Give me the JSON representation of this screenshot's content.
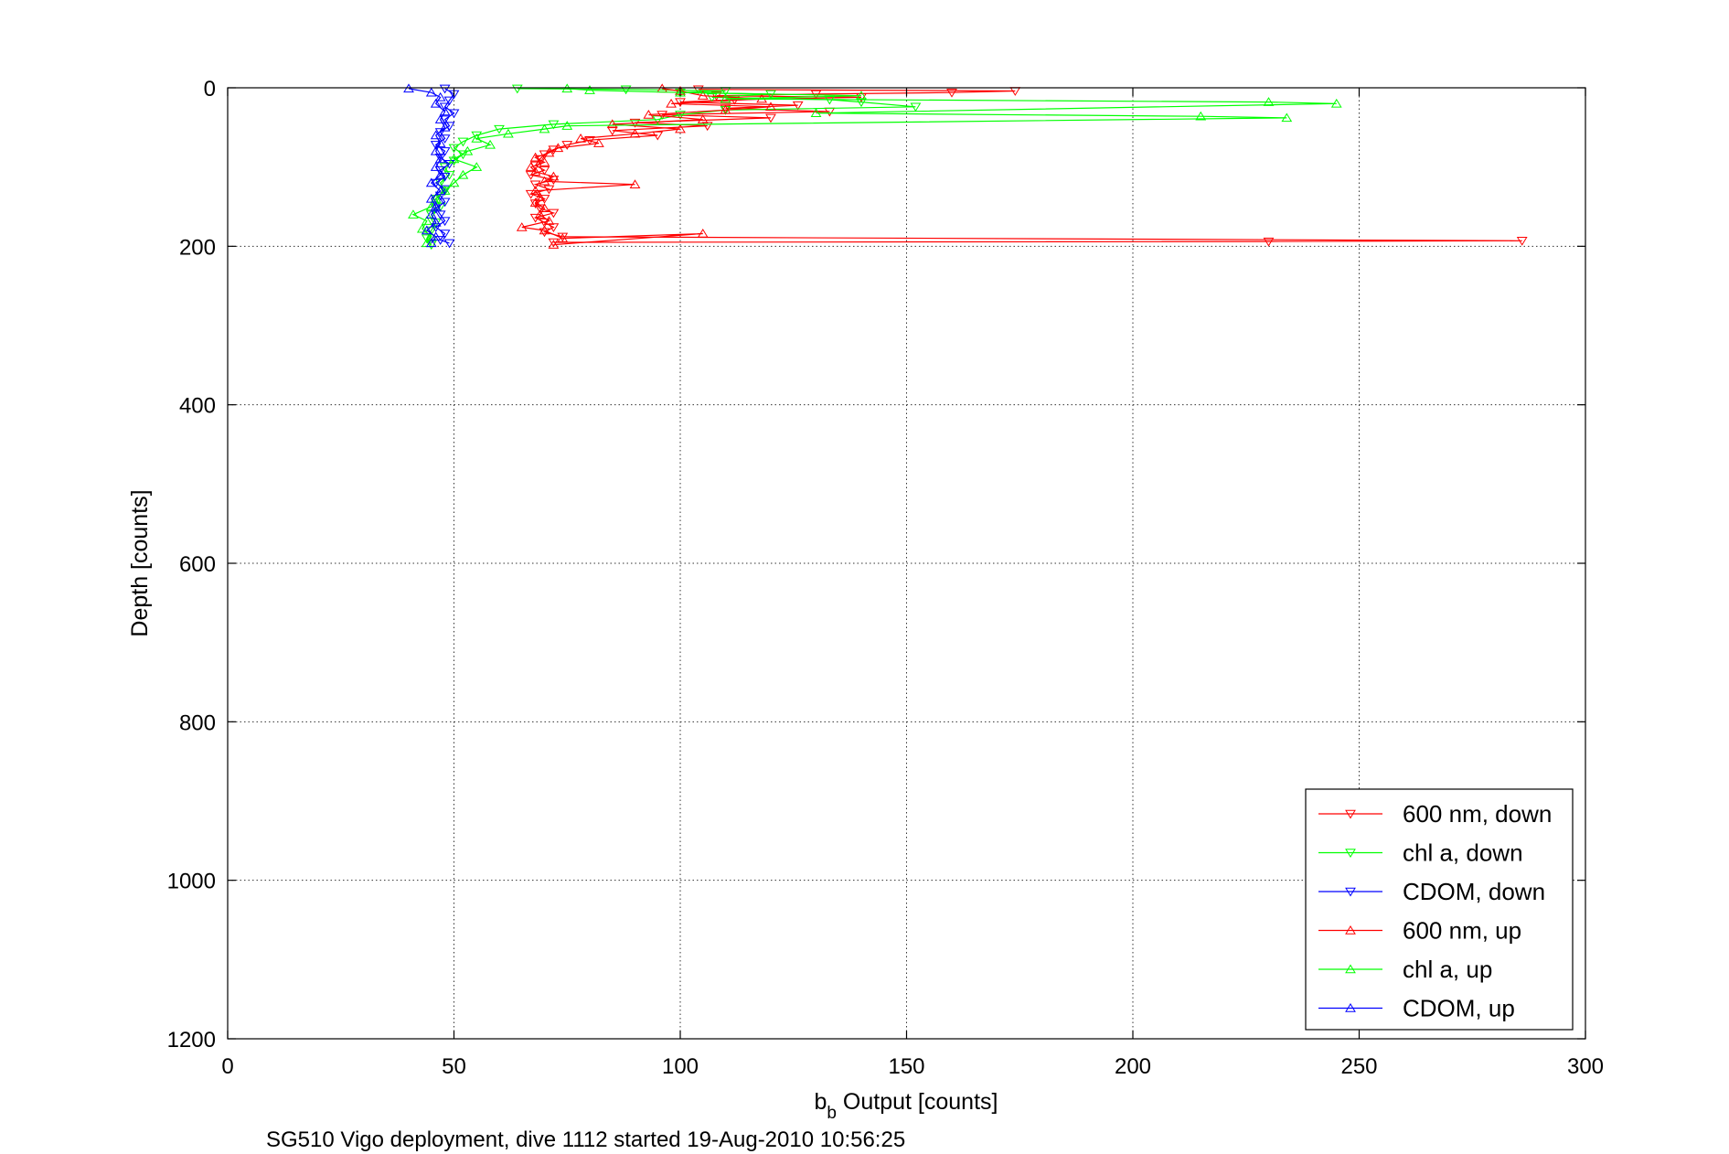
{
  "chart_data": {
    "type": "line",
    "xlabel": "b",
    "xlabel_sub": "b",
    "xlabel_rest": " Output [counts]",
    "ylabel": "Depth [counts]",
    "footnote": "SG510 Vigo deployment, dive 1112 started 19-Aug-2010 10:56:25",
    "xlim": [
      0,
      300
    ],
    "ylim": [
      0,
      1200
    ],
    "y_reversed": true,
    "x_ticks": [
      "0",
      "50",
      "100",
      "150",
      "200",
      "250",
      "300"
    ],
    "y_ticks": [
      "0",
      "200",
      "400",
      "600",
      "800",
      "1000",
      "1200"
    ],
    "grid": true,
    "legend_position": "bottom-right",
    "series": [
      {
        "name": "600 nm, down",
        "color": "#ff0000",
        "marker": "triangle-down",
        "points": [
          [
            104,
            2
          ],
          [
            174,
            4
          ],
          [
            160,
            6
          ],
          [
            130,
            8
          ],
          [
            108,
            10
          ],
          [
            140,
            12
          ],
          [
            112,
            15
          ],
          [
            100,
            18
          ],
          [
            126,
            22
          ],
          [
            110,
            26
          ],
          [
            133,
            30
          ],
          [
            96,
            34
          ],
          [
            120,
            38
          ],
          [
            90,
            44
          ],
          [
            106,
            48
          ],
          [
            85,
            54
          ],
          [
            95,
            60
          ],
          [
            80,
            66
          ],
          [
            75,
            72
          ],
          [
            72,
            78
          ],
          [
            70,
            84
          ],
          [
            69,
            90
          ],
          [
            68,
            98
          ],
          [
            70,
            104
          ],
          [
            67,
            110
          ],
          [
            72,
            116
          ],
          [
            68,
            122
          ],
          [
            71,
            128
          ],
          [
            67,
            134
          ],
          [
            70,
            140
          ],
          [
            68,
            146
          ],
          [
            69,
            152
          ],
          [
            72,
            158
          ],
          [
            68,
            164
          ],
          [
            70,
            170
          ],
          [
            72,
            176
          ],
          [
            70,
            182
          ],
          [
            74,
            188
          ],
          [
            286,
            193
          ],
          [
            230,
            194
          ],
          [
            72,
            195
          ]
        ]
      },
      {
        "name": "chl a, down",
        "color": "#00ff00",
        "marker": "triangle-down",
        "points": [
          [
            64,
            1
          ],
          [
            88,
            2
          ],
          [
            110,
            4
          ],
          [
            100,
            6
          ],
          [
            120,
            8
          ],
          [
            107,
            12
          ],
          [
            133,
            15
          ],
          [
            140,
            18
          ],
          [
            152,
            24
          ],
          [
            110,
            28
          ],
          [
            100,
            34
          ],
          [
            95,
            40
          ],
          [
            72,
            46
          ],
          [
            60,
            52
          ],
          [
            55,
            60
          ],
          [
            52,
            68
          ],
          [
            50,
            76
          ],
          [
            52,
            84
          ],
          [
            50,
            92
          ],
          [
            48,
            100
          ],
          [
            49,
            110
          ],
          [
            47,
            120
          ],
          [
            48,
            130
          ],
          [
            46,
            140
          ],
          [
            47,
            150
          ],
          [
            45,
            160
          ],
          [
            46,
            170
          ],
          [
            45,
            180
          ],
          [
            44,
            190
          ],
          [
            45,
            198
          ]
        ]
      },
      {
        "name": "CDOM, down",
        "color": "#0000ff",
        "marker": "triangle-down",
        "points": [
          [
            48,
            1
          ],
          [
            50,
            8
          ],
          [
            49,
            16
          ],
          [
            48,
            24
          ],
          [
            50,
            32
          ],
          [
            48,
            40
          ],
          [
            49,
            48
          ],
          [
            47,
            56
          ],
          [
            48,
            64
          ],
          [
            46,
            72
          ],
          [
            48,
            80
          ],
          [
            47,
            88
          ],
          [
            49,
            96
          ],
          [
            47,
            104
          ],
          [
            48,
            112
          ],
          [
            46,
            120
          ],
          [
            48,
            128
          ],
          [
            47,
            136
          ],
          [
            48,
            144
          ],
          [
            46,
            152
          ],
          [
            47,
            160
          ],
          [
            48,
            168
          ],
          [
            46,
            176
          ],
          [
            48,
            184
          ],
          [
            47,
            192
          ],
          [
            49,
            196
          ]
        ]
      },
      {
        "name": "600 nm, up",
        "color": "#ff0000",
        "marker": "triangle-up",
        "points": [
          [
            72,
            198
          ],
          [
            105,
            184
          ],
          [
            74,
            190
          ],
          [
            70,
            180
          ],
          [
            65,
            176
          ],
          [
            71,
            168
          ],
          [
            69,
            160
          ],
          [
            70,
            152
          ],
          [
            68,
            145
          ],
          [
            69,
            138
          ],
          [
            68,
            130
          ],
          [
            90,
            122
          ],
          [
            70,
            118
          ],
          [
            72,
            112
          ],
          [
            68,
            106
          ],
          [
            67,
            100
          ],
          [
            70,
            94
          ],
          [
            68,
            88
          ],
          [
            71,
            82
          ],
          [
            73,
            76
          ],
          [
            82,
            70
          ],
          [
            78,
            64
          ],
          [
            90,
            58
          ],
          [
            100,
            52
          ],
          [
            85,
            46
          ],
          [
            105,
            40
          ],
          [
            93,
            34
          ],
          [
            110,
            28
          ],
          [
            120,
            24
          ],
          [
            98,
            20
          ],
          [
            118,
            14
          ],
          [
            105,
            10
          ],
          [
            100,
            4
          ],
          [
            96,
            1
          ]
        ]
      },
      {
        "name": "chl a, up",
        "color": "#00ff00",
        "marker": "triangle-up",
        "points": [
          [
            44,
            196
          ],
          [
            45,
            188
          ],
          [
            43,
            178
          ],
          [
            44,
            168
          ],
          [
            41,
            160
          ],
          [
            45,
            150
          ],
          [
            46,
            140
          ],
          [
            48,
            130
          ],
          [
            50,
            120
          ],
          [
            52,
            110
          ],
          [
            55,
            100
          ],
          [
            50,
            90
          ],
          [
            53,
            80
          ],
          [
            58,
            72
          ],
          [
            55,
            64
          ],
          [
            62,
            58
          ],
          [
            70,
            52
          ],
          [
            75,
            48
          ],
          [
            234,
            38
          ],
          [
            215,
            36
          ],
          [
            130,
            32
          ],
          [
            245,
            20
          ],
          [
            230,
            18
          ],
          [
            110,
            14
          ],
          [
            140,
            10
          ],
          [
            100,
            6
          ],
          [
            80,
            3
          ],
          [
            75,
            1
          ]
        ]
      },
      {
        "name": "CDOM, up",
        "color": "#0000ff",
        "marker": "triangle-up",
        "points": [
          [
            45,
            196
          ],
          [
            46,
            188
          ],
          [
            44,
            180
          ],
          [
            46,
            170
          ],
          [
            45,
            160
          ],
          [
            46,
            150
          ],
          [
            45,
            140
          ],
          [
            47,
            130
          ],
          [
            45,
            120
          ],
          [
            47,
            110
          ],
          [
            46,
            100
          ],
          [
            47,
            90
          ],
          [
            46,
            80
          ],
          [
            47,
            70
          ],
          [
            46,
            60
          ],
          [
            48,
            50
          ],
          [
            47,
            40
          ],
          [
            48,
            30
          ],
          [
            46,
            20
          ],
          [
            47,
            12
          ],
          [
            45,
            6
          ],
          [
            40,
            1
          ]
        ]
      }
    ]
  }
}
